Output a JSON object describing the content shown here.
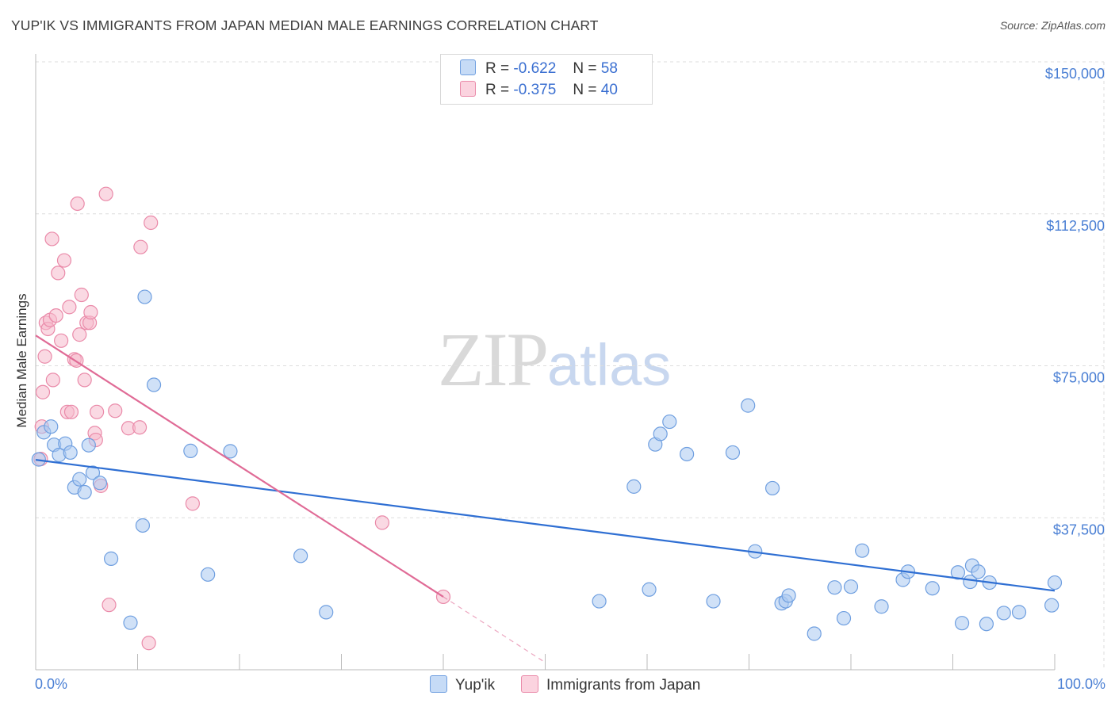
{
  "title": "YUP'IK VS IMMIGRANTS FROM JAPAN MEDIAN MALE EARNINGS CORRELATION CHART",
  "source": "Source: ZipAtlas.com",
  "watermark": {
    "zip": "ZIP",
    "atlas": "atlas"
  },
  "legend": {
    "rows": [
      {
        "r_label": "R =",
        "r_value": "-0.622",
        "n_label": "N =",
        "n_value": "58"
      },
      {
        "r_label": "R =",
        "r_value": "-0.375",
        "n_label": "N =",
        "n_value": "40"
      }
    ]
  },
  "bottom_legend": [
    {
      "label": "Yup'ik"
    },
    {
      "label": "Immigrants from Japan"
    }
  ],
  "colors": {
    "blue_fill": "#a9c8f0",
    "blue_stroke": "#6f9fe0",
    "blue_line": "#2f6fd3",
    "pink_fill": "#f6b9cc",
    "pink_stroke": "#ea8aa9",
    "pink_line": "#e06b96",
    "grid": "#dddddd",
    "axis_label": "#4a7fd4"
  },
  "chart_data": {
    "type": "scatter",
    "title": "YUP'IK VS IMMIGRANTS FROM JAPAN MEDIAN MALE EARNINGS CORRELATION CHART",
    "xlabel": "",
    "ylabel": "Median Male Earnings",
    "xlim": [
      0,
      100
    ],
    "ylim": [
      0,
      150000
    ],
    "x_tick_labels": [
      "0.0%",
      "100.0%"
    ],
    "y_ticks": [
      {
        "value": 37500,
        "label": "$37,500"
      },
      {
        "value": 75000,
        "label": "$75,000"
      },
      {
        "value": 112500,
        "label": "$112,500"
      },
      {
        "value": 150000,
        "label": "$150,000"
      }
    ],
    "series": [
      {
        "name": "Yup'ik",
        "r": -0.622,
        "n": 58,
        "trend": {
          "x0": 0,
          "y0": 51800,
          "x1": 100,
          "y1": 19500
        },
        "points": [
          [
            0.3,
            51900
          ],
          [
            0.8,
            58600
          ],
          [
            1.5,
            60000
          ],
          [
            1.8,
            55500
          ],
          [
            2.3,
            53000
          ],
          [
            2.9,
            55800
          ],
          [
            3.4,
            53600
          ],
          [
            3.8,
            45000
          ],
          [
            4.3,
            47000
          ],
          [
            4.8,
            43800
          ],
          [
            5.2,
            55400
          ],
          [
            5.6,
            48600
          ],
          [
            6.3,
            46100
          ],
          [
            7.4,
            27400
          ],
          [
            9.3,
            11600
          ],
          [
            10.7,
            92000
          ],
          [
            10.5,
            35600
          ],
          [
            11.6,
            70300
          ],
          [
            15.2,
            54000
          ],
          [
            16.9,
            23500
          ],
          [
            19.1,
            53900
          ],
          [
            26.0,
            28100
          ],
          [
            28.5,
            14200
          ],
          [
            55.3,
            16900
          ],
          [
            58.7,
            45200
          ],
          [
            60.2,
            19800
          ],
          [
            60.8,
            55600
          ],
          [
            61.3,
            58200
          ],
          [
            62.2,
            61200
          ],
          [
            63.9,
            53200
          ],
          [
            66.5,
            16900
          ],
          [
            68.4,
            53600
          ],
          [
            69.9,
            65200
          ],
          [
            70.6,
            29200
          ],
          [
            72.3,
            44800
          ],
          [
            73.2,
            16400
          ],
          [
            73.6,
            16900
          ],
          [
            73.9,
            18300
          ],
          [
            76.4,
            8900
          ],
          [
            78.4,
            20300
          ],
          [
            79.3,
            12700
          ],
          [
            80.0,
            20500
          ],
          [
            81.1,
            29400
          ],
          [
            83.0,
            15600
          ],
          [
            85.1,
            22200
          ],
          [
            85.6,
            24200
          ],
          [
            88.0,
            20100
          ],
          [
            90.5,
            24000
          ],
          [
            90.9,
            11500
          ],
          [
            91.7,
            21700
          ],
          [
            91.9,
            25700
          ],
          [
            92.5,
            24200
          ],
          [
            93.3,
            11300
          ],
          [
            93.6,
            21500
          ],
          [
            95.0,
            14000
          ],
          [
            96.5,
            14200
          ],
          [
            99.7,
            15900
          ],
          [
            100.0,
            21500
          ]
        ]
      },
      {
        "name": "Immigrants from Japan",
        "r": -0.375,
        "n": 40,
        "trend": {
          "x0": 0,
          "y0": 82500,
          "x1": 40,
          "y1": 18000,
          "dash_to_x": 50,
          "dash_to_y": 1800
        },
        "points": [
          [
            0.5,
            52000
          ],
          [
            0.6,
            60000
          ],
          [
            0.7,
            68500
          ],
          [
            0.9,
            77300
          ],
          [
            1.0,
            85600
          ],
          [
            1.2,
            84100
          ],
          [
            1.4,
            86300
          ],
          [
            1.6,
            106300
          ],
          [
            1.7,
            71500
          ],
          [
            2.0,
            87400
          ],
          [
            2.2,
            97900
          ],
          [
            2.5,
            81200
          ],
          [
            2.8,
            101000
          ],
          [
            3.1,
            63600
          ],
          [
            3.3,
            89500
          ],
          [
            3.5,
            63600
          ],
          [
            3.8,
            76600
          ],
          [
            4.0,
            76300
          ],
          [
            4.1,
            115000
          ],
          [
            4.3,
            82700
          ],
          [
            4.5,
            92500
          ],
          [
            4.8,
            71500
          ],
          [
            5.0,
            85600
          ],
          [
            5.3,
            85600
          ],
          [
            5.4,
            88200
          ],
          [
            5.8,
            58400
          ],
          [
            5.9,
            56700
          ],
          [
            6.0,
            63600
          ],
          [
            6.4,
            45400
          ],
          [
            6.9,
            117400
          ],
          [
            7.2,
            16000
          ],
          [
            7.8,
            63900
          ],
          [
            9.1,
            59600
          ],
          [
            10.2,
            59800
          ],
          [
            10.3,
            104300
          ],
          [
            11.1,
            6600
          ],
          [
            11.3,
            110300
          ],
          [
            15.4,
            41000
          ],
          [
            34.0,
            36300
          ],
          [
            40.0,
            18000
          ]
        ]
      }
    ]
  }
}
